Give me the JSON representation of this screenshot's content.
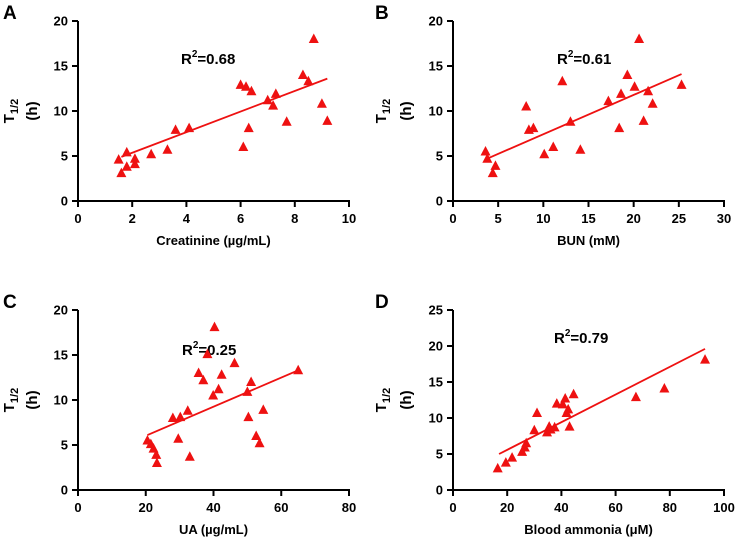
{
  "colors": {
    "marker": "#ee1111",
    "axis": "#000000"
  },
  "chart_data": [
    {
      "type": "scatter",
      "panel": "A",
      "xlabel": "Creatinine (µg/mL)",
      "ylabel": {
        "main": "T",
        "sub": "1/2",
        "unit": "(h)"
      },
      "r2": {
        "prefix": "R",
        "sup": "2",
        "value": "=0.68"
      },
      "xlim": [
        0,
        10
      ],
      "ylim": [
        0,
        20
      ],
      "xticks": [
        0,
        2,
        4,
        6,
        8,
        10
      ],
      "yticks": [
        0,
        5,
        10,
        15,
        20
      ],
      "fit": {
        "x": [
          1.6,
          9.2
        ],
        "y": [
          4.9,
          13.6
        ]
      },
      "points": [
        {
          "x": 1.5,
          "y": 4.6
        },
        {
          "x": 1.6,
          "y": 3.1
        },
        {
          "x": 1.8,
          "y": 3.8
        },
        {
          "x": 1.8,
          "y": 5.4
        },
        {
          "x": 2.1,
          "y": 4.1
        },
        {
          "x": 2.1,
          "y": 4.7
        },
        {
          "x": 2.7,
          "y": 5.2
        },
        {
          "x": 3.3,
          "y": 5.7
        },
        {
          "x": 3.6,
          "y": 7.9
        },
        {
          "x": 4.1,
          "y": 8.1
        },
        {
          "x": 6.0,
          "y": 12.9
        },
        {
          "x": 6.1,
          "y": 6.0
        },
        {
          "x": 6.2,
          "y": 12.7
        },
        {
          "x": 6.3,
          "y": 8.1
        },
        {
          "x": 6.4,
          "y": 12.2
        },
        {
          "x": 7.0,
          "y": 11.2
        },
        {
          "x": 7.2,
          "y": 10.6
        },
        {
          "x": 7.3,
          "y": 11.9
        },
        {
          "x": 7.7,
          "y": 8.8
        },
        {
          "x": 8.3,
          "y": 14.0
        },
        {
          "x": 8.5,
          "y": 13.3
        },
        {
          "x": 8.7,
          "y": 18.0
        },
        {
          "x": 9.0,
          "y": 10.8
        },
        {
          "x": 9.2,
          "y": 8.9
        }
      ]
    },
    {
      "type": "scatter",
      "panel": "B",
      "xlabel": "BUN (mM)",
      "ylabel": {
        "main": "T",
        "sub": "1/2",
        "unit": "(h)"
      },
      "r2": {
        "prefix": "R",
        "sup": "2",
        "value": "=0.61"
      },
      "xlim": [
        0,
        30
      ],
      "ylim": [
        0,
        20
      ],
      "xticks": [
        0,
        5,
        10,
        15,
        20,
        25,
        30
      ],
      "yticks": [
        0,
        5,
        10,
        15,
        20
      ],
      "fit": {
        "x": [
          4.0,
          25.3
        ],
        "y": [
          4.8,
          14.1
        ]
      },
      "points": [
        {
          "x": 3.6,
          "y": 5.5
        },
        {
          "x": 3.8,
          "y": 4.7
        },
        {
          "x": 4.4,
          "y": 3.1
        },
        {
          "x": 4.7,
          "y": 3.9
        },
        {
          "x": 8.1,
          "y": 10.5
        },
        {
          "x": 8.4,
          "y": 7.9
        },
        {
          "x": 8.9,
          "y": 8.1
        },
        {
          "x": 10.1,
          "y": 5.2
        },
        {
          "x": 11.1,
          "y": 6.0
        },
        {
          "x": 12.1,
          "y": 13.3
        },
        {
          "x": 13.0,
          "y": 8.8
        },
        {
          "x": 14.1,
          "y": 5.7
        },
        {
          "x": 17.2,
          "y": 11.1
        },
        {
          "x": 18.4,
          "y": 8.1
        },
        {
          "x": 18.6,
          "y": 11.9
        },
        {
          "x": 19.3,
          "y": 14.0
        },
        {
          "x": 20.1,
          "y": 12.7
        },
        {
          "x": 20.6,
          "y": 18.0
        },
        {
          "x": 21.1,
          "y": 8.9
        },
        {
          "x": 21.6,
          "y": 12.2
        },
        {
          "x": 22.1,
          "y": 10.8
        },
        {
          "x": 25.3,
          "y": 12.9
        }
      ]
    },
    {
      "type": "scatter",
      "panel": "C",
      "xlabel": "UA (µg/mL)",
      "ylabel": {
        "main": "T",
        "sub": "1/2",
        "unit": "(h)"
      },
      "r2": {
        "prefix": "R",
        "sup": "2",
        "value": "=0.25"
      },
      "xlim": [
        0,
        80
      ],
      "ylim": [
        0,
        20
      ],
      "xticks": [
        0,
        20,
        40,
        60,
        80
      ],
      "yticks": [
        0,
        5,
        10,
        15,
        20
      ],
      "fit": {
        "x": [
          20.5,
          65.0
        ],
        "y": [
          6.1,
          13.3
        ]
      },
      "points": [
        {
          "x": 20.5,
          "y": 5.5
        },
        {
          "x": 21.5,
          "y": 5.1
        },
        {
          "x": 22.3,
          "y": 4.6
        },
        {
          "x": 23.1,
          "y": 3.9
        },
        {
          "x": 23.3,
          "y": 3.0
        },
        {
          "x": 28.0,
          "y": 8.0
        },
        {
          "x": 29.6,
          "y": 5.7
        },
        {
          "x": 30.2,
          "y": 8.1
        },
        {
          "x": 32.4,
          "y": 8.8
        },
        {
          "x": 33.0,
          "y": 3.7
        },
        {
          "x": 35.6,
          "y": 13.0
        },
        {
          "x": 37.0,
          "y": 12.2
        },
        {
          "x": 38.2,
          "y": 15.1
        },
        {
          "x": 39.9,
          "y": 10.5
        },
        {
          "x": 40.3,
          "y": 18.1
        },
        {
          "x": 41.5,
          "y": 11.2
        },
        {
          "x": 42.4,
          "y": 12.8
        },
        {
          "x": 46.2,
          "y": 14.1
        },
        {
          "x": 50.0,
          "y": 10.9
        },
        {
          "x": 50.3,
          "y": 8.1
        },
        {
          "x": 51.1,
          "y": 12.0
        },
        {
          "x": 52.6,
          "y": 6.0
        },
        {
          "x": 53.6,
          "y": 5.2
        },
        {
          "x": 54.7,
          "y": 8.9
        },
        {
          "x": 65.0,
          "y": 13.3
        }
      ]
    },
    {
      "type": "scatter",
      "panel": "D",
      "xlabel": "Blood ammonia (μM)",
      "ylabel": {
        "main": "T",
        "sub": "1/2",
        "unit": "(h)"
      },
      "r2": {
        "prefix": "R",
        "sup": "2",
        "value": "=0.79"
      },
      "xlim": [
        0,
        100
      ],
      "ylim": [
        0,
        25
      ],
      "xticks": [
        0,
        20,
        40,
        60,
        80,
        100
      ],
      "yticks": [
        0,
        5,
        10,
        15,
        20,
        25
      ],
      "fit": {
        "x": [
          17,
          93
        ],
        "y": [
          5.0,
          19.6
        ]
      },
      "points": [
        {
          "x": 16.5,
          "y": 3.0
        },
        {
          "x": 19.5,
          "y": 3.8
        },
        {
          "x": 21.8,
          "y": 4.5
        },
        {
          "x": 25.5,
          "y": 5.3
        },
        {
          "x": 26.5,
          "y": 5.9
        },
        {
          "x": 27.0,
          "y": 6.5
        },
        {
          "x": 30.0,
          "y": 8.3
        },
        {
          "x": 31.0,
          "y": 10.7
        },
        {
          "x": 34.7,
          "y": 8.0
        },
        {
          "x": 35.5,
          "y": 8.8
        },
        {
          "x": 36.0,
          "y": 8.4
        },
        {
          "x": 37.5,
          "y": 8.7
        },
        {
          "x": 38.3,
          "y": 12.0
        },
        {
          "x": 40.5,
          "y": 11.9
        },
        {
          "x": 41.4,
          "y": 12.7
        },
        {
          "x": 41.9,
          "y": 10.7
        },
        {
          "x": 42.5,
          "y": 11.2
        },
        {
          "x": 43.0,
          "y": 8.8
        },
        {
          "x": 44.5,
          "y": 13.3
        },
        {
          "x": 67.5,
          "y": 12.9
        },
        {
          "x": 78.0,
          "y": 14.1
        },
        {
          "x": 93.0,
          "y": 18.1
        }
      ]
    }
  ]
}
